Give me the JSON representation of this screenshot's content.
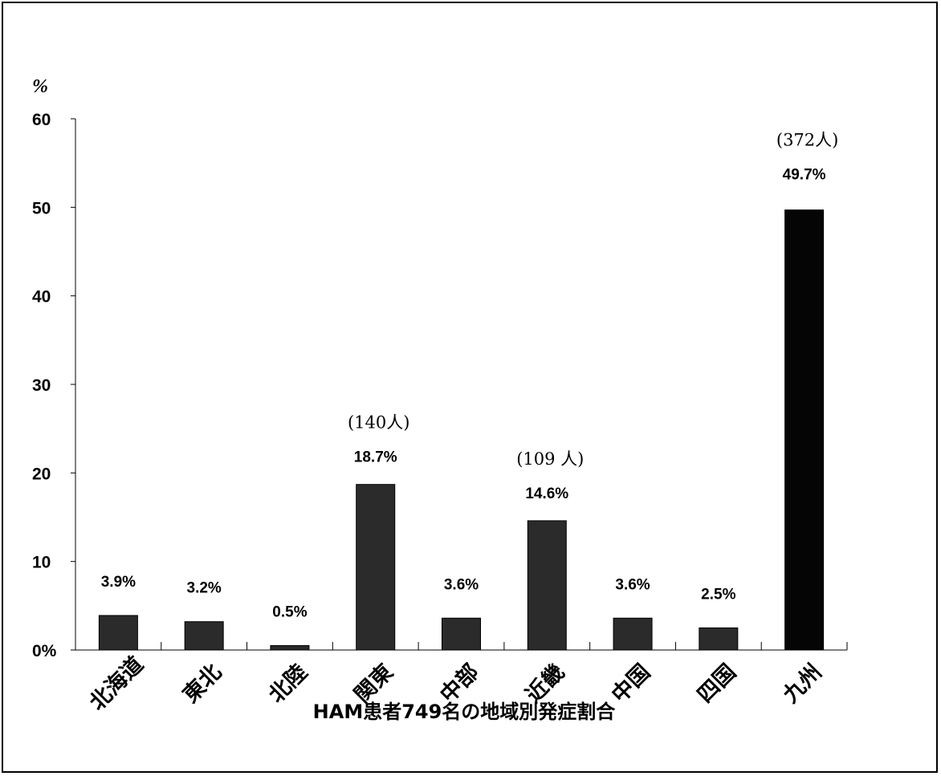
{
  "chart_data": {
    "type": "bar",
    "xlabel": "HAM患者749名の地域別発症割合",
    "ylabel": "%",
    "ylim": [
      0,
      60
    ],
    "y_ticks": [
      {
        "value": 0,
        "label": "0%"
      },
      {
        "value": 10,
        "label": "10"
      },
      {
        "value": 20,
        "label": "20"
      },
      {
        "value": 30,
        "label": "30"
      },
      {
        "value": 40,
        "label": "40"
      },
      {
        "value": 50,
        "label": "50"
      },
      {
        "value": 60,
        "label": "60"
      }
    ],
    "categories": [
      "北海道",
      "東北",
      "北陸",
      "関東",
      "中部",
      "近畿",
      "中国",
      "四国",
      "九州"
    ],
    "values": [
      3.9,
      3.2,
      0.5,
      18.7,
      3.6,
      14.6,
      3.6,
      2.5,
      49.7
    ],
    "data_labels": [
      "3.9%",
      "3.2%",
      "0.5%",
      "18.7%",
      "3.6%",
      "14.6%",
      "3.6%",
      "2.5%",
      "49.7%"
    ],
    "count_labels": [
      "",
      "",
      "",
      "(140人)",
      "",
      "(109 人)",
      "",
      "",
      "(372人)"
    ],
    "bar_colors": [
      "#2b2b2b",
      "#2b2b2b",
      "#2b2b2b",
      "#2b2b2b",
      "#2b2b2b",
      "#2b2b2b",
      "#2b2b2b",
      "#2b2b2b",
      "#050505"
    ],
    "grid": false
  }
}
